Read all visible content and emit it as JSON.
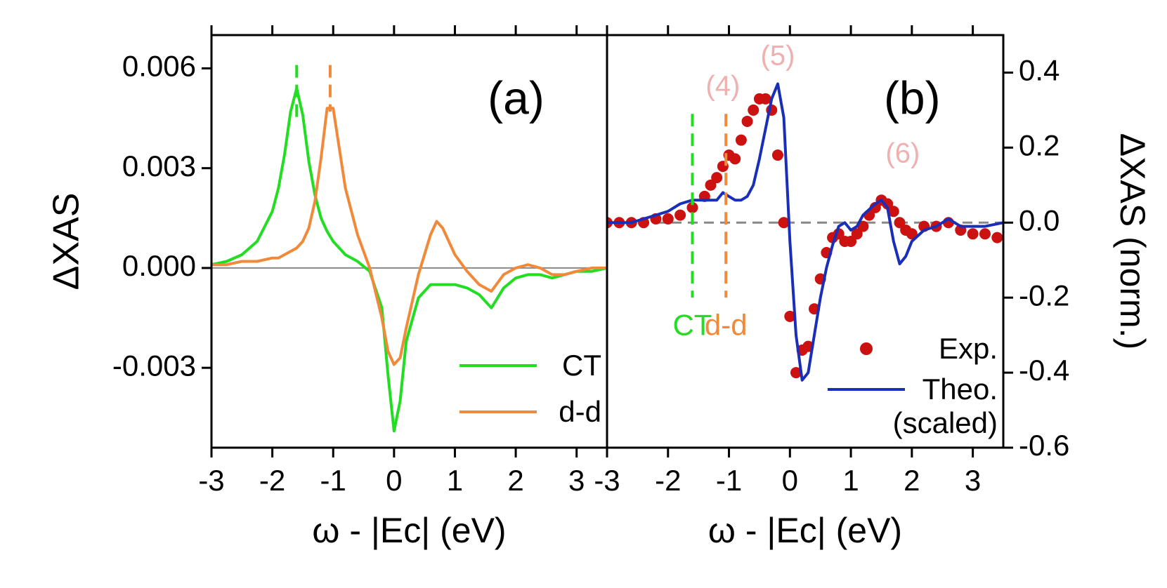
{
  "chart_data": [
    {
      "type": "line",
      "panel_label": "(a)",
      "xlabel": "ω - |Ec| (eV)",
      "ylabel": "ΔXAS",
      "xlim": [
        -3,
        3.5
      ],
      "xticks": [
        -3,
        -2,
        -1,
        0,
        1,
        2,
        3
      ],
      "ylim": [
        -0.0054,
        0.007
      ],
      "yticks": [
        0.006,
        0.003,
        {
          "value": 0,
          "label": "0.000"
        },
        -0.003
      ],
      "hline": {
        "y": 0,
        "color": "#888888",
        "dashed": false
      },
      "vlines": [
        {
          "x": -1.6,
          "y": [
            0.0061,
            0.0045
          ],
          "color": "#22dd22"
        },
        {
          "x": -1.05,
          "y": [
            0.0061,
            0.0047
          ],
          "color": "#f08a3a"
        }
      ],
      "legend": "lower right",
      "x": [
        -3,
        -2.75,
        -2.5,
        -2.25,
        -2,
        -1.9,
        -1.8,
        -1.7,
        -1.6,
        -1.5,
        -1.4,
        -1.3,
        -1.2,
        -1.1,
        -1.0,
        -0.9,
        -0.8,
        -0.6,
        -0.4,
        -0.2,
        -0.1,
        0,
        0.1,
        0.2,
        0.4,
        0.6,
        0.7,
        0.8,
        1.0,
        1.2,
        1.4,
        1.6,
        1.8,
        2.0,
        2.2,
        2.4,
        2.6,
        2.8,
        3.0,
        3.25,
        3.5
      ],
      "series": [
        {
          "name": "CT",
          "color": "#22dd22",
          "values": [
            0.0001,
            0.0002,
            0.0004,
            0.0008,
            0.0017,
            0.0024,
            0.0034,
            0.0047,
            0.0054,
            0.0046,
            0.0032,
            0.0022,
            0.0015,
            0.0011,
            0.0008,
            0.0006,
            0.0004,
            0.0002,
            -0.0001,
            -0.0012,
            -0.0032,
            -0.0049,
            -0.004,
            -0.0022,
            -0.0009,
            -0.0005,
            -0.0005,
            -0.0005,
            -0.0005,
            -0.0006,
            -0.0008,
            -0.0012,
            -0.0006,
            -0.0003,
            -0.0002,
            -0.0002,
            -0.0003,
            -0.0002,
            -0.0001,
            -0.0001,
            0
          ]
        },
        {
          "name": "d-d",
          "color": "#f08a3a",
          "values": [
            0.0001,
            0.0001,
            0.0002,
            0.0002,
            0.0003,
            0.0003,
            0.0004,
            0.0005,
            0.0006,
            0.0008,
            0.0012,
            0.002,
            0.0033,
            0.0048,
            0.0048,
            0.0036,
            0.0024,
            0.001,
            0,
            -0.0015,
            -0.0025,
            -0.0029,
            -0.0027,
            -0.0018,
            -0.0002,
            0.001,
            0.0014,
            0.0012,
            0.0004,
            -0.0001,
            -0.0005,
            -0.0007,
            -0.0002,
            0,
            0.0001,
            0,
            -0.0002,
            -0.0002,
            -0.0001,
            0,
            0
          ]
        }
      ]
    },
    {
      "type": "line",
      "panel_label": "(b)",
      "xlabel": "ω - |Ec| (eV)",
      "y2label": "ΔXAS (norm.)",
      "xlim": [
        -3,
        3.5
      ],
      "xticks": [
        -3,
        -2,
        -1,
        0,
        1,
        2,
        3
      ],
      "y2lim": [
        -0.6,
        0.5
      ],
      "y2ticks": [
        0.4,
        0.2,
        {
          "value": 0,
          "label": "0.0"
        },
        -0.2,
        -0.4,
        -0.6
      ],
      "hline": {
        "y": 0,
        "color": "#888888",
        "dashed": true
      },
      "vlines": [
        {
          "x": -1.6,
          "y": [
            0.29,
            -0.2
          ],
          "color": "#22dd22",
          "label": "CT"
        },
        {
          "x": -1.05,
          "y": [
            0.29,
            -0.2
          ],
          "color": "#f08a3a",
          "label": "d-d"
        }
      ],
      "annotations": [
        {
          "text": "(4)",
          "color": "#f0b0b0"
        },
        {
          "text": "(5)",
          "color": "#f0b0b0"
        },
        {
          "text": "(6)",
          "color": "#f0b0b0"
        }
      ],
      "legend": "lower right",
      "series": [
        {
          "name": "Exp.",
          "type": "scatter",
          "axis": "y2",
          "color": "#cc1111",
          "x": [
            -3,
            -2.8,
            -2.6,
            -2.4,
            -2.2,
            -2.0,
            -1.8,
            -1.6,
            -1.4,
            -1.3,
            -1.2,
            -1.1,
            -1.0,
            -0.9,
            -0.8,
            -0.7,
            -0.6,
            -0.5,
            -0.4,
            -0.3,
            -0.2,
            -0.1,
            0.0,
            0.1,
            0.2,
            0.3,
            0.4,
            0.5,
            0.6,
            0.7,
            0.8,
            0.9,
            1.0,
            1.1,
            1.2,
            1.3,
            1.4,
            1.5,
            1.6,
            1.7,
            1.8,
            1.9,
            2.0,
            2.2,
            2.4,
            2.6,
            2.8,
            3.0,
            3.2,
            3.4
          ],
          "values": [
            0,
            0,
            0,
            0,
            0.01,
            0.01,
            0.02,
            0.04,
            0.07,
            0.1,
            0.12,
            0.15,
            0.18,
            0.17,
            0.22,
            0.27,
            0.3,
            0.33,
            0.33,
            0.3,
            0.18,
            0,
            -0.25,
            -0.4,
            -0.34,
            -0.33,
            -0.23,
            -0.15,
            -0.08,
            -0.04,
            -0.03,
            -0.05,
            -0.05,
            -0.03,
            -0.01,
            0.02,
            0.04,
            0.06,
            0.05,
            0.03,
            0,
            -0.02,
            -0.03,
            -0.01,
            -0.01,
            0,
            -0.02,
            -0.03,
            -0.03,
            -0.04
          ]
        },
        {
          "name": "Theo. (scaled)",
          "type": "line",
          "axis": "y2",
          "color": "#1a2fb8",
          "x": [
            -3,
            -2.6,
            -2.4,
            -2.2,
            -2.0,
            -1.8,
            -1.6,
            -1.4,
            -1.2,
            -1.1,
            -1.0,
            -0.9,
            -0.8,
            -0.7,
            -0.6,
            -0.5,
            -0.4,
            -0.3,
            -0.2,
            -0.1,
            0.0,
            0.1,
            0.2,
            0.3,
            0.4,
            0.5,
            0.6,
            0.7,
            0.8,
            0.9,
            1.0,
            1.1,
            1.2,
            1.4,
            1.5,
            1.6,
            1.7,
            1.8,
            1.9,
            2.0,
            2.2,
            2.4,
            2.6,
            2.8,
            3.0,
            3.2,
            3.5
          ],
          "values": [
            0,
            0,
            0.01,
            0.02,
            0.03,
            0.05,
            0.06,
            0.06,
            0.06,
            0.08,
            0.07,
            0.06,
            0.06,
            0.07,
            0.1,
            0.17,
            0.25,
            0.33,
            0.37,
            0.28,
            -0.05,
            -0.3,
            -0.42,
            -0.4,
            -0.3,
            -0.2,
            -0.12,
            -0.06,
            -0.01,
            0,
            -0.02,
            -0.01,
            0.02,
            0.05,
            0.06,
            0.04,
            -0.05,
            -0.11,
            -0.09,
            -0.05,
            -0.02,
            -0.01,
            0.01,
            -0.01,
            -0.01,
            -0.01,
            0
          ]
        }
      ]
    }
  ]
}
